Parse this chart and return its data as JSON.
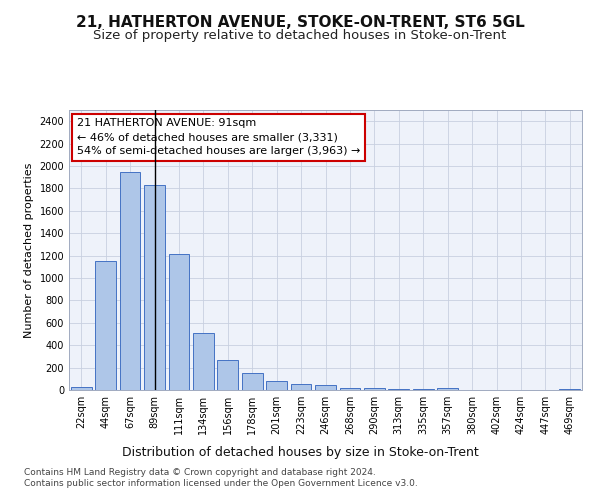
{
  "title": "21, HATHERTON AVENUE, STOKE-ON-TRENT, ST6 5GL",
  "subtitle": "Size of property relative to detached houses in Stoke-on-Trent",
  "xlabel": "Distribution of detached houses by size in Stoke-on-Trent",
  "ylabel": "Number of detached properties",
  "categories": [
    "22sqm",
    "44sqm",
    "67sqm",
    "89sqm",
    "111sqm",
    "134sqm",
    "156sqm",
    "178sqm",
    "201sqm",
    "223sqm",
    "246sqm",
    "268sqm",
    "290sqm",
    "313sqm",
    "335sqm",
    "357sqm",
    "380sqm",
    "402sqm",
    "424sqm",
    "447sqm",
    "469sqm"
  ],
  "values": [
    28,
    1150,
    1950,
    1830,
    1210,
    510,
    265,
    155,
    80,
    50,
    42,
    18,
    20,
    12,
    5,
    20,
    0,
    0,
    0,
    0,
    5
  ],
  "bar_color": "#aec6e8",
  "bar_edge_color": "#4472c4",
  "highlight_bar_index": 3,
  "highlight_line_color": "#000000",
  "annotation_text": "21 HATHERTON AVENUE: 91sqm\n← 46% of detached houses are smaller (3,331)\n54% of semi-detached houses are larger (3,963) →",
  "annotation_box_color": "#ffffff",
  "annotation_box_edge": "#cc0000",
  "footer_line1": "Contains HM Land Registry data © Crown copyright and database right 2024.",
  "footer_line2": "Contains public sector information licensed under the Open Government Licence v3.0.",
  "ylim": [
    0,
    2500
  ],
  "yticks": [
    0,
    200,
    400,
    600,
    800,
    1000,
    1200,
    1400,
    1600,
    1800,
    2000,
    2200,
    2400
  ],
  "bg_color": "#eef2fa",
  "fig_bg_color": "#ffffff",
  "title_fontsize": 11,
  "subtitle_fontsize": 9.5,
  "xlabel_fontsize": 9,
  "ylabel_fontsize": 8,
  "tick_fontsize": 7,
  "annotation_fontsize": 8,
  "footer_fontsize": 6.5
}
